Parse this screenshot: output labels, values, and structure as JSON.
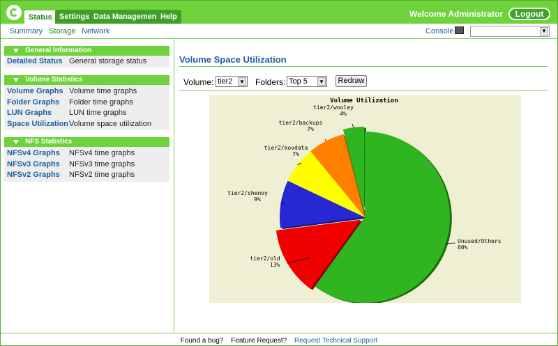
{
  "header": {
    "tabs": [
      {
        "label": "Status",
        "active": true
      },
      {
        "label": "Settings",
        "active": false
      },
      {
        "label": "Data Management",
        "active": false
      },
      {
        "label": "Help",
        "active": false
      }
    ],
    "welcome": "Welcome Administrator",
    "logout_label": "Logout"
  },
  "subnav": {
    "tabs": [
      {
        "label": "Summary",
        "active": false
      },
      {
        "label": "Storage",
        "active": true
      },
      {
        "label": "Network",
        "active": false
      }
    ],
    "console_label": "Console",
    "console_select_value": ""
  },
  "sidebar": {
    "sections": [
      {
        "title": "General Information",
        "items": [
          {
            "link": "Detailed Status",
            "desc": "General storage status"
          }
        ]
      },
      {
        "title": "Volume Statistics",
        "items": [
          {
            "link": "Volume Graphs",
            "desc": "Volume time graphs"
          },
          {
            "link": "Folder Graphs",
            "desc": "Folder time graphs"
          },
          {
            "link": "LUN Graphs",
            "desc": "LUN time graphs"
          },
          {
            "link": "Space Utilization",
            "desc": "Volume space utilization"
          }
        ]
      },
      {
        "title": "NFS Statistics",
        "items": [
          {
            "link": "NFSv4 Graphs",
            "desc": "NFSv4 time graphs"
          },
          {
            "link": "NFSv3 Graphs",
            "desc": "NFSv3 time graphs"
          },
          {
            "link": "NFSv2 Graphs",
            "desc": "NFSv2 time graphs"
          }
        ]
      }
    ]
  },
  "main": {
    "title": "Volume Space Utilization",
    "volume_label": "Volume:",
    "volume_value": "tier2",
    "folders_label": "Folders:",
    "folders_value": "Top 5",
    "redraw_label": "Redraw"
  },
  "chart_data": {
    "type": "pie",
    "title": "Volume Utilization",
    "slices": [
      {
        "label": "Unused/Others",
        "value": 60,
        "pct_label": "60%",
        "color": "#2fb51f",
        "dark": "#1a6d10",
        "exploded": false
      },
      {
        "label": "tier2/old",
        "value": 13,
        "pct_label": "13%",
        "color": "#f00000",
        "dark": "#8a0000",
        "exploded": true
      },
      {
        "label": "tier2/shenoy",
        "value": 9,
        "pct_label": "9%",
        "color": "#2828d2",
        "dark": "#14146e",
        "exploded": false
      },
      {
        "label": "tier2/kovdata",
        "value": 7,
        "pct_label": "7%",
        "color": "#ffff00",
        "dark": "#8a8a00",
        "exploded": false
      },
      {
        "label": "tier2/backups",
        "value": 7,
        "pct_label": "7%",
        "color": "#ff8000",
        "dark": "#8a4500",
        "exploded": false
      },
      {
        "label": "tier2/wooley",
        "value": 4,
        "pct_label": "4%",
        "color": "#2fb51f",
        "dark": "#1a6d10",
        "exploded": true
      }
    ]
  },
  "footer": {
    "bug": "Found a bug?",
    "feature": "Feature Request?",
    "support": "Request Technical Support"
  }
}
